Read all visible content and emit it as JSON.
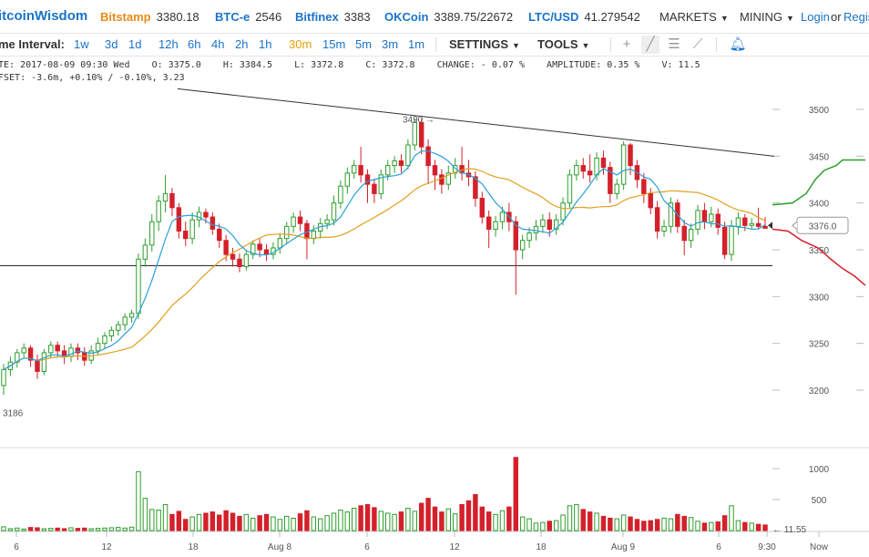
{
  "header": {
    "brand": "itcoinWisdom",
    "tickers": [
      {
        "exchange": "Bitstamp",
        "price": "3380.18",
        "color": "#e88a1a"
      },
      {
        "exchange": "BTC-e",
        "price": "2546",
        "color": "#1a73c8"
      },
      {
        "exchange": "Bitfinex",
        "price": "3383",
        "color": "#1a73c8"
      },
      {
        "exchange": "OKCoin",
        "price": "3389.75/22672",
        "color": "#1a73c8"
      },
      {
        "exchange": "LTC/USD",
        "price": "41.279542",
        "color": "#1a73c8"
      }
    ],
    "markets_label": "MARKETS",
    "mining_label": "MINING",
    "login_label": "Login",
    "or_label": "or",
    "register_label": "Regis"
  },
  "toolbar": {
    "interval_label": "me Interval:",
    "intervals": [
      "1w",
      "3d",
      "1d",
      "12h",
      "6h",
      "4h",
      "2h",
      "1h",
      "30m",
      "15m",
      "5m",
      "3m",
      "1m"
    ],
    "active_interval": "30m",
    "settings_label": "SETTINGS",
    "tools_label": "TOOLS",
    "tool_icons": [
      "crosshair-icon",
      "line-draw-icon",
      "horizontal-lines-icon",
      "fan-icon",
      "bell-icon"
    ]
  },
  "info": {
    "line1": "TE: 2017-08-09 09:30 Wed    O: 3375.0    H: 3384.5    L: 3372.8    C: 3372.8    CHANGE: - 0.07 %    AMPLITUDE: 0.35 %    V: 11.5",
    "line2": "FSET: -3.6m, +0.10% / -0.10%, 3.23"
  },
  "chart_data": {
    "type": "candlestick",
    "y_ticks": [
      3200,
      3250,
      3300,
      3350,
      3400,
      3450,
      3500
    ],
    "ylim": [
      3180,
      3520
    ],
    "volume_ticks": [
      500,
      1000
    ],
    "volume_ylim": [
      0,
      1200
    ],
    "x_ticks": [
      "6",
      "12",
      "18",
      "Aug 8",
      "6",
      "12",
      "18",
      "Aug 9",
      "6",
      "9:30",
      "Now"
    ],
    "annotations": {
      "high_label": "3490",
      "low_label": "3186",
      "current_price": "3376.0",
      "last_volume": "11.55"
    },
    "colors": {
      "up": "#2e9e2e",
      "down": "#d4202a",
      "ma_fast": "#2aa0d8",
      "ma_slow": "#e0a020",
      "depth_bid": "#2e9e2e",
      "depth_ask": "#d4202a"
    },
    "candles": [
      [
        3205,
        3222,
        3195,
        3228
      ],
      [
        3222,
        3230,
        3215,
        3236
      ],
      [
        3230,
        3240,
        3224,
        3244
      ],
      [
        3240,
        3245,
        3235,
        3250
      ],
      [
        3245,
        3232,
        3225,
        3248
      ],
      [
        3232,
        3220,
        3212,
        3238
      ],
      [
        3220,
        3240,
        3216,
        3244
      ],
      [
        3240,
        3248,
        3234,
        3252
      ],
      [
        3248,
        3242,
        3236,
        3252
      ],
      [
        3242,
        3236,
        3228,
        3248
      ],
      [
        3236,
        3245,
        3230,
        3250
      ],
      [
        3245,
        3240,
        3232,
        3250
      ],
      [
        3240,
        3232,
        3226,
        3246
      ],
      [
        3232,
        3242,
        3228,
        3248
      ],
      [
        3242,
        3250,
        3238,
        3256
      ],
      [
        3250,
        3258,
        3244,
        3262
      ],
      [
        3258,
        3264,
        3252,
        3268
      ],
      [
        3264,
        3270,
        3258,
        3274
      ],
      [
        3270,
        3278,
        3264,
        3282
      ],
      [
        3278,
        3282,
        3272,
        3286
      ],
      [
        3282,
        3340,
        3276,
        3346
      ],
      [
        3340,
        3355,
        3332,
        3362
      ],
      [
        3355,
        3380,
        3348,
        3388
      ],
      [
        3380,
        3402,
        3370,
        3408
      ],
      [
        3402,
        3410,
        3390,
        3430
      ],
      [
        3410,
        3395,
        3386,
        3416
      ],
      [
        3395,
        3370,
        3362,
        3400
      ],
      [
        3370,
        3362,
        3354,
        3380
      ],
      [
        3362,
        3382,
        3356,
        3390
      ],
      [
        3382,
        3390,
        3374,
        3396
      ],
      [
        3390,
        3385,
        3378,
        3394
      ],
      [
        3385,
        3372,
        3366,
        3390
      ],
      [
        3372,
        3360,
        3352,
        3378
      ],
      [
        3360,
        3345,
        3338,
        3366
      ],
      [
        3345,
        3340,
        3332,
        3352
      ],
      [
        3340,
        3332,
        3326,
        3346
      ],
      [
        3332,
        3345,
        3328,
        3350
      ],
      [
        3345,
        3356,
        3340,
        3360
      ],
      [
        3356,
        3350,
        3342,
        3362
      ],
      [
        3350,
        3345,
        3338,
        3356
      ],
      [
        3345,
        3352,
        3340,
        3358
      ],
      [
        3352,
        3362,
        3346,
        3368
      ],
      [
        3362,
        3375,
        3356,
        3380
      ],
      [
        3375,
        3385,
        3368,
        3390
      ],
      [
        3385,
        3378,
        3370,
        3392
      ],
      [
        3378,
        3362,
        3340,
        3382
      ],
      [
        3362,
        3370,
        3356,
        3376
      ],
      [
        3370,
        3378,
        3362,
        3384
      ],
      [
        3378,
        3382,
        3372,
        3388
      ],
      [
        3382,
        3400,
        3376,
        3408
      ],
      [
        3400,
        3418,
        3394,
        3424
      ],
      [
        3418,
        3432,
        3410,
        3438
      ],
      [
        3432,
        3440,
        3426,
        3446
      ],
      [
        3440,
        3430,
        3422,
        3460
      ],
      [
        3430,
        3420,
        3400,
        3436
      ],
      [
        3420,
        3410,
        3400,
        3426
      ],
      [
        3410,
        3430,
        3404,
        3436
      ],
      [
        3430,
        3440,
        3424,
        3446
      ],
      [
        3440,
        3445,
        3432,
        3450
      ],
      [
        3445,
        3440,
        3432,
        3452
      ],
      [
        3440,
        3462,
        3436,
        3468
      ],
      [
        3462,
        3486,
        3456,
        3490
      ],
      [
        3486,
        3460,
        3452,
        3490
      ],
      [
        3460,
        3440,
        3420,
        3468
      ],
      [
        3440,
        3430,
        3414,
        3446
      ],
      [
        3430,
        3420,
        3410,
        3436
      ],
      [
        3420,
        3432,
        3414,
        3440
      ],
      [
        3432,
        3440,
        3426,
        3448
      ],
      [
        3440,
        3432,
        3424,
        3460
      ],
      [
        3432,
        3428,
        3418,
        3446
      ],
      [
        3428,
        3405,
        3396,
        3434
      ],
      [
        3405,
        3385,
        3378,
        3412
      ],
      [
        3385,
        3372,
        3352,
        3392
      ],
      [
        3372,
        3380,
        3364,
        3386
      ],
      [
        3380,
        3390,
        3372,
        3396
      ],
      [
        3390,
        3380,
        3370,
        3400
      ],
      [
        3380,
        3350,
        3302,
        3386
      ],
      [
        3350,
        3360,
        3340,
        3366
      ],
      [
        3360,
        3368,
        3352,
        3374
      ],
      [
        3368,
        3375,
        3360,
        3382
      ],
      [
        3375,
        3382,
        3368,
        3388
      ],
      [
        3382,
        3372,
        3364,
        3390
      ],
      [
        3372,
        3382,
        3366,
        3388
      ],
      [
        3382,
        3400,
        3376,
        3406
      ],
      [
        3400,
        3430,
        3394,
        3436
      ],
      [
        3430,
        3440,
        3424,
        3446
      ],
      [
        3440,
        3434,
        3426,
        3448
      ],
      [
        3434,
        3430,
        3422,
        3452
      ],
      [
        3430,
        3448,
        3424,
        3454
      ],
      [
        3448,
        3438,
        3430,
        3456
      ],
      [
        3438,
        3410,
        3400,
        3444
      ],
      [
        3410,
        3420,
        3404,
        3426
      ],
      [
        3420,
        3462,
        3414,
        3466
      ],
      [
        3462,
        3440,
        3430,
        3464
      ],
      [
        3440,
        3425,
        3416,
        3446
      ],
      [
        3425,
        3410,
        3400,
        3432
      ],
      [
        3410,
        3395,
        3388,
        3416
      ],
      [
        3395,
        3370,
        3362,
        3402
      ],
      [
        3370,
        3375,
        3364,
        3382
      ],
      [
        3375,
        3400,
        3368,
        3406
      ],
      [
        3400,
        3375,
        3368,
        3404
      ],
      [
        3375,
        3360,
        3344,
        3382
      ],
      [
        3360,
        3372,
        3352,
        3378
      ],
      [
        3372,
        3392,
        3366,
        3398
      ],
      [
        3392,
        3380,
        3372,
        3400
      ],
      [
        3380,
        3388,
        3374,
        3396
      ],
      [
        3388,
        3374,
        3366,
        3394
      ],
      [
        3374,
        3345,
        3340,
        3380
      ],
      [
        3345,
        3375,
        3338,
        3382
      ],
      [
        3375,
        3384,
        3366,
        3390
      ],
      [
        3384,
        3376,
        3370,
        3388
      ],
      [
        3376,
        3378,
        3372,
        3384
      ],
      [
        3378,
        3375,
        3372,
        3395
      ],
      [
        3375,
        3373,
        3373,
        3385
      ]
    ],
    "volumes": [
      60,
      30,
      40,
      25,
      50,
      45,
      30,
      35,
      40,
      30,
      45,
      35,
      40,
      30,
      35,
      40,
      45,
      50,
      40,
      55,
      950,
      520,
      340,
      330,
      420,
      260,
      310,
      180,
      220,
      260,
      280,
      300,
      250,
      320,
      280,
      230,
      260,
      200,
      240,
      260,
      220,
      180,
      230,
      200,
      270,
      320,
      220,
      190,
      240,
      280,
      330,
      300,
      360,
      400,
      420,
      370,
      310,
      280,
      260,
      300,
      360,
      310,
      440,
      520,
      380,
      300,
      350,
      270,
      420,
      480,
      580,
      380,
      300,
      260,
      320,
      380,
      1180,
      220,
      190,
      120,
      130,
      150,
      160,
      250,
      400,
      420,
      340,
      300,
      280,
      230,
      200,
      190,
      250,
      220,
      180,
      150,
      160,
      180,
      200,
      190,
      260,
      230,
      210,
      150,
      120,
      130,
      140,
      240,
      400,
      160,
      130,
      120,
      100,
      90
    ]
  }
}
